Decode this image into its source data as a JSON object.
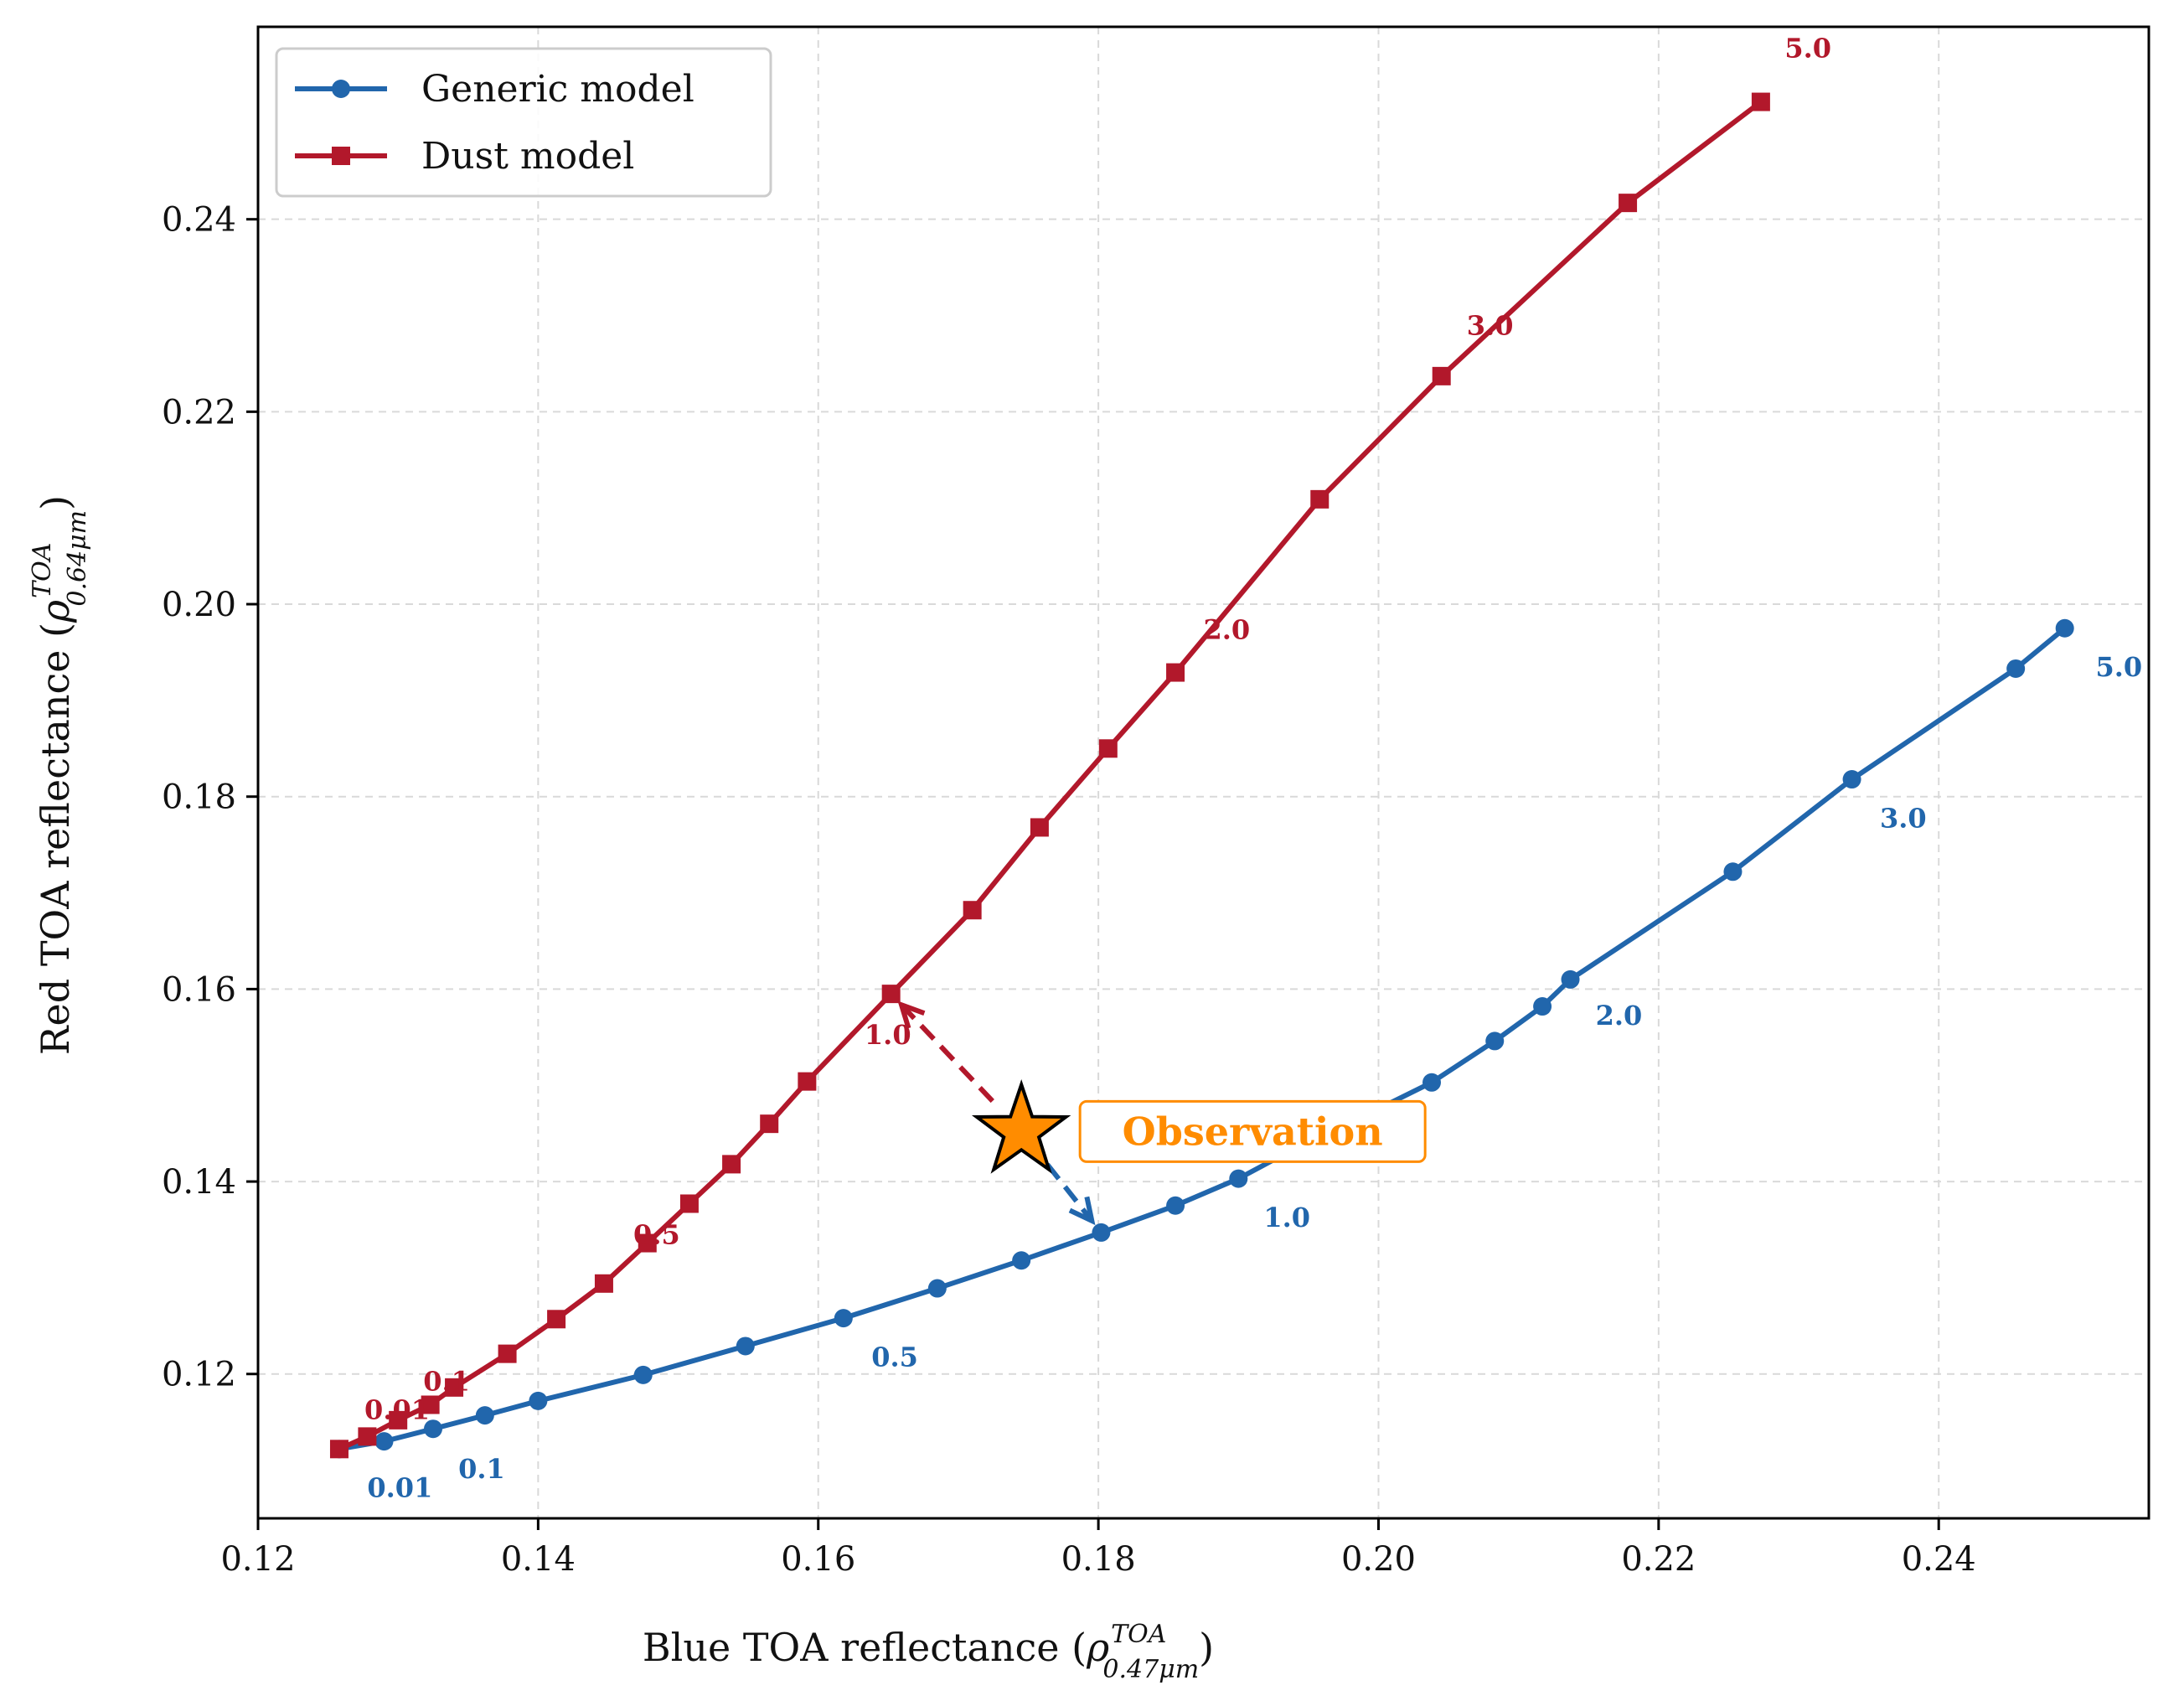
{
  "chart_data": {
    "type": "line",
    "xlabel": {
      "main": "Blue TOA reflectance (",
      "sym": "ρ",
      "sub": "0.47μm",
      "sup": "TOA",
      "close": ")"
    },
    "ylabel": {
      "main": "Red TOA reflectance (",
      "sym": "ρ",
      "sub": "0.64μm",
      "sup": "TOA",
      "close": ")"
    },
    "xlim": [
      0.12,
      0.255
    ],
    "ylim": [
      0.105,
      0.26
    ],
    "xticks": [
      0.12,
      0.14,
      0.16,
      0.18,
      0.2,
      0.22,
      0.24
    ],
    "yticks": [
      0.12,
      0.14,
      0.16,
      0.18,
      0.2,
      0.22,
      0.24
    ],
    "xtick_labels": [
      "0.12",
      "0.14",
      "0.16",
      "0.18",
      "0.20",
      "0.22",
      "0.24"
    ],
    "ytick_labels": [
      "0.12",
      "0.14",
      "0.16",
      "0.18",
      "0.20",
      "0.22",
      "0.24"
    ],
    "grid": true,
    "legend_position": "top-left",
    "series": [
      {
        "name": "Generic model",
        "color": "#2166ac",
        "marker": "circle",
        "x": [
          0.1258,
          0.129,
          0.1325,
          0.1362,
          0.14,
          0.1475,
          0.1548,
          0.1618,
          0.1685,
          0.1745,
          0.1802,
          0.1855,
          0.19,
          0.1945,
          0.1995,
          0.2038,
          0.2083,
          0.2117,
          0.2137,
          0.2253,
          0.2338,
          0.2455,
          0.249
        ],
        "y": [
          0.1122,
          0.113,
          0.1143,
          0.1157,
          0.1172,
          0.1199,
          0.1229,
          0.1258,
          0.1289,
          0.1318,
          0.1347,
          0.1375,
          0.1403,
          0.1438,
          0.1472,
          0.1503,
          0.1546,
          0.1582,
          0.161,
          0.1722,
          0.1818,
          0.1933,
          0.1975
        ],
        "point_labels": [
          {
            "text": "0.01",
            "x": 0.1278,
            "y": 0.1072
          },
          {
            "text": "0.1",
            "x": 0.1343,
            "y": 0.1092
          },
          {
            "text": "0.5",
            "x": 0.1638,
            "y": 0.1208
          },
          {
            "text": "1.0",
            "x": 0.1918,
            "y": 0.1353
          },
          {
            "text": "2.0",
            "x": 0.2155,
            "y": 0.1563
          },
          {
            "text": "3.0",
            "x": 0.2358,
            "y": 0.1768
          },
          {
            "text": "5.0",
            "x": 0.2512,
            "y": 0.1925
          }
        ]
      },
      {
        "name": "Dust model",
        "color": "#b2182b",
        "marker": "square",
        "x": [
          0.1258,
          0.1278,
          0.13,
          0.1323,
          0.134,
          0.1378,
          0.1413,
          0.1447,
          0.1478,
          0.1508,
          0.1538,
          0.1565,
          0.1592,
          0.1652,
          0.171,
          0.1758,
          0.1807,
          0.1855,
          0.1958,
          0.2045,
          0.2178,
          0.2273
        ],
        "y": [
          0.1122,
          0.1135,
          0.1152,
          0.1168,
          0.1186,
          0.1221,
          0.1257,
          0.1294,
          0.1336,
          0.1377,
          0.1418,
          0.146,
          0.1504,
          0.1595,
          0.1682,
          0.1768,
          0.185,
          0.1929,
          0.2109,
          0.2237,
          0.2417,
          0.2522
        ],
        "point_labels": [
          {
            "text": "0.01",
            "x": 0.1276,
            "y": 0.1153
          },
          {
            "text": "0.1",
            "x": 0.1318,
            "y": 0.1183
          },
          {
            "text": "0.5",
            "x": 0.1468,
            "y": 0.1335
          },
          {
            "text": "1.0",
            "x": 0.1633,
            "y": 0.1543
          },
          {
            "text": "2.0",
            "x": 0.1875,
            "y": 0.1964
          },
          {
            "text": "3.0",
            "x": 0.2063,
            "y": 0.228
          },
          {
            "text": "5.0",
            "x": 0.229,
            "y": 0.2568
          }
        ]
      }
    ],
    "observation": {
      "label": "Observation",
      "x": 0.1745,
      "y": 0.1452,
      "color": "#ff8c00",
      "arrow_targets": [
        {
          "x": 0.1652,
          "y": 0.1595,
          "color": "#b2182b"
        },
        {
          "x": 0.1802,
          "y": 0.1347,
          "color": "#2166ac"
        }
      ]
    }
  }
}
